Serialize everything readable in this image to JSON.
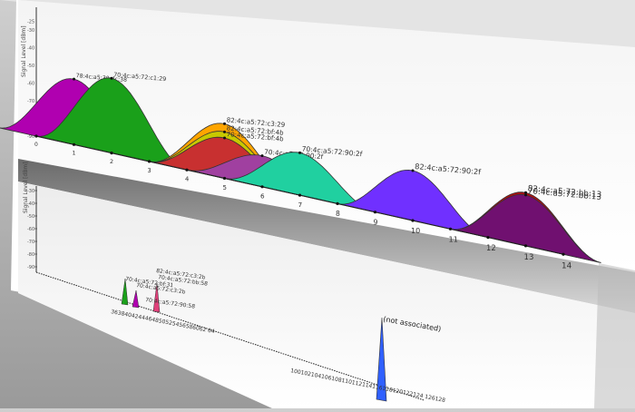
{
  "top_chart": {
    "y_axis_label": "Signal Level [dBm]",
    "y_ticks": [
      "-25",
      "-30",
      "-40",
      "-50",
      "-60",
      "-70",
      "-80",
      "-90"
    ],
    "x_ticks": [
      "0",
      "1",
      "2",
      "3",
      "4",
      "5",
      "6",
      "7",
      "8",
      "9",
      "10",
      "11",
      "12",
      "13",
      "14"
    ],
    "networks": [
      {
        "label": "78:4c:a5:30:4c:38",
        "channel": 1,
        "level": -54,
        "color": "#b000b0"
      },
      {
        "label": "70:4c:a5:72:c1:29",
        "channel": 2,
        "level": -50,
        "color": "#1aa01a"
      },
      {
        "label": "82:4c:a5:72:c3:29",
        "channel": 5,
        "level": -63,
        "color": "#ffa500"
      },
      {
        "label": "82:4c:a5:72:bf:4b",
        "channel": 5,
        "level": -67,
        "color": "#c8c800"
      },
      {
        "label": "70:4c:a5:72:bf:4b",
        "channel": 5,
        "level": -70,
        "color": "#c83030"
      },
      {
        "label": "70:4c:a5:72:90:2f",
        "channel": 6,
        "level": -75,
        "color": "#a040a0"
      },
      {
        "label": "70:4c:a5:72:90:2f",
        "channel": 7,
        "level": -70,
        "color": "#20d0a0"
      },
      {
        "label": "82:4c:a5:72:90:2f",
        "channel": 10,
        "level": -68,
        "color": "#7030ff"
      },
      {
        "label": "82:4c:a5:72:bb:13",
        "channel": 13,
        "level": -68,
        "color": "#b01010"
      },
      {
        "label": "70:4c:a5:72:bb:13",
        "channel": 13,
        "level": -69,
        "color": "#701070"
      }
    ]
  },
  "bottom_chart": {
    "y_axis_label": "Signal Level [dBm]",
    "y_ticks": [
      "-30",
      "-40",
      "-50",
      "-60",
      "-70",
      "-80",
      "-90"
    ],
    "x_ticks_a": "3638404244464850525456586062 64",
    "x_ticks_b": "100102104106108110112114116118120122124 126128",
    "annotation": "(not associated)",
    "peaks_labels": [
      "70:4c:a5:72:bf:31",
      "70:4c:a5:72:c3:2b",
      "82:4c:a5:72:c3:2b",
      "70:4c:a5:72:bb:58",
      "70:4c:a5:72:90:58"
    ]
  }
}
